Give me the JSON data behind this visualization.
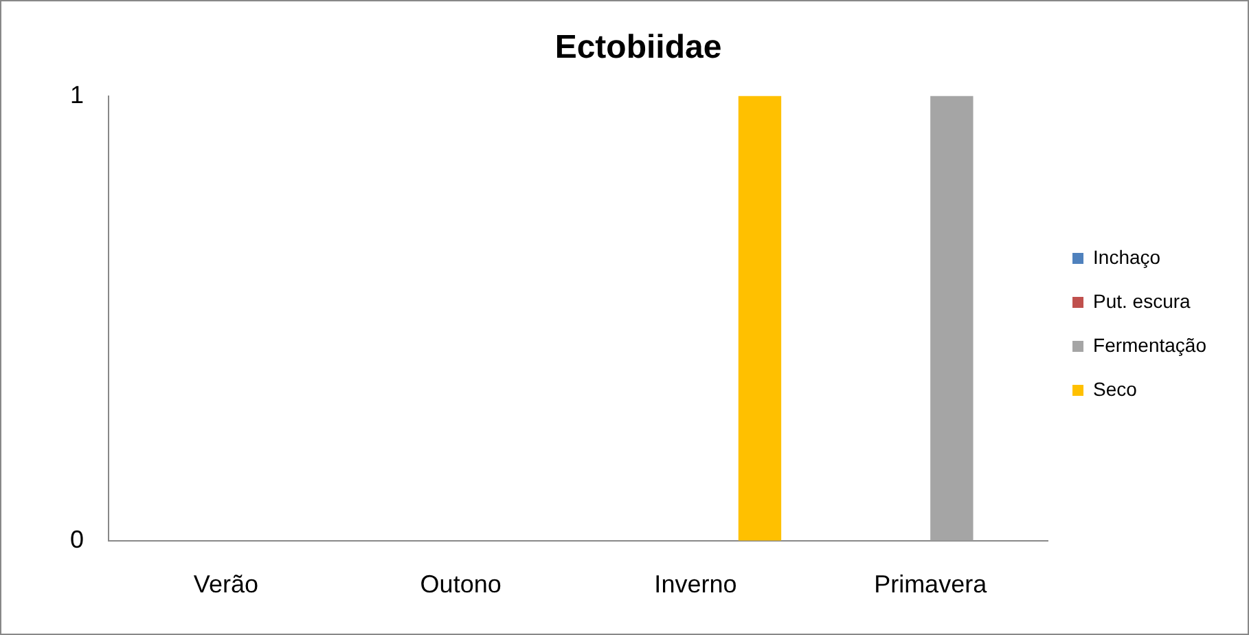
{
  "chart_data": {
    "type": "bar",
    "title": "Ectobiidae",
    "categories": [
      "Verão",
      "Outono",
      "Inverno",
      "Primavera"
    ],
    "series": [
      {
        "name": "Inchaço",
        "color": "#4f81bd",
        "values": [
          0,
          0,
          0,
          0
        ]
      },
      {
        "name": "Put. escura",
        "color": "#c0504d",
        "values": [
          0,
          0,
          0,
          0
        ]
      },
      {
        "name": "Fermentação",
        "color": "#a5a5a5",
        "values": [
          0,
          0,
          0,
          1
        ]
      },
      {
        "name": "Seco",
        "color": "#ffc000",
        "values": [
          0,
          0,
          1,
          0
        ]
      }
    ],
    "ylim": [
      0,
      1
    ],
    "yticks": [
      0,
      1
    ],
    "grid": false,
    "legend": "right"
  }
}
